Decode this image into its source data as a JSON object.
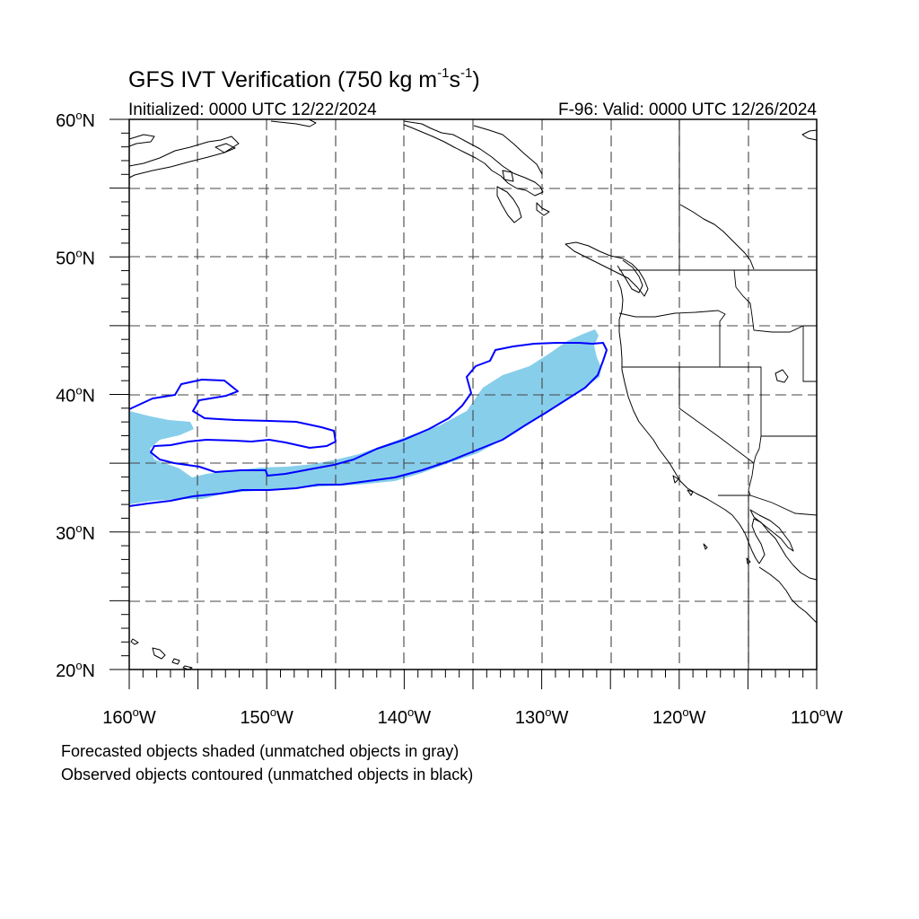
{
  "title_main": "GFS IVT Verification (750 kg m",
  "title_sup1": "-1",
  "title_mid": "s",
  "title_sup2": "-1",
  "title_end": ")",
  "init_label": "Initialized: 0000 UTC 12/22/2024",
  "valid_label": "F-96: Valid: 0000 UTC 12/26/2024",
  "lat_ticks": [
    {
      "v": 60,
      "n": "60",
      "s": "o",
      "h": "N"
    },
    {
      "v": 50,
      "n": "50",
      "s": "o",
      "h": "N"
    },
    {
      "v": 40,
      "n": "40",
      "s": "o",
      "h": "N"
    },
    {
      "v": 30,
      "n": "30",
      "s": "o",
      "h": "N"
    },
    {
      "v": 20,
      "n": "20",
      "s": "o",
      "h": "N"
    }
  ],
  "lon_ticks": [
    {
      "v": -160,
      "n": "160",
      "s": "o",
      "h": "W"
    },
    {
      "v": -150,
      "n": "150",
      "s": "o",
      "h": "W"
    },
    {
      "v": -140,
      "n": "140",
      "s": "o",
      "h": "W"
    },
    {
      "v": -130,
      "n": "130",
      "s": "o",
      "h": "W"
    },
    {
      "v": -120,
      "n": "120",
      "s": "o",
      "h": "W"
    },
    {
      "v": -110,
      "n": "110",
      "s": "o",
      "h": "W"
    }
  ],
  "footnote_1": "Forecasted objects shaded (unmatched objects in gray)",
  "footnote_2": "Observed objects contoured (unmatched objects in black)",
  "colors": {
    "forecast_fill": "#87ceeb",
    "observed_contour": "#0000ff",
    "coastline": "#000000",
    "gridline": "#444444"
  },
  "map_extent": {
    "lon_min": -160,
    "lon_max": -110,
    "lat_min": 20,
    "lat_max": 60
  }
}
